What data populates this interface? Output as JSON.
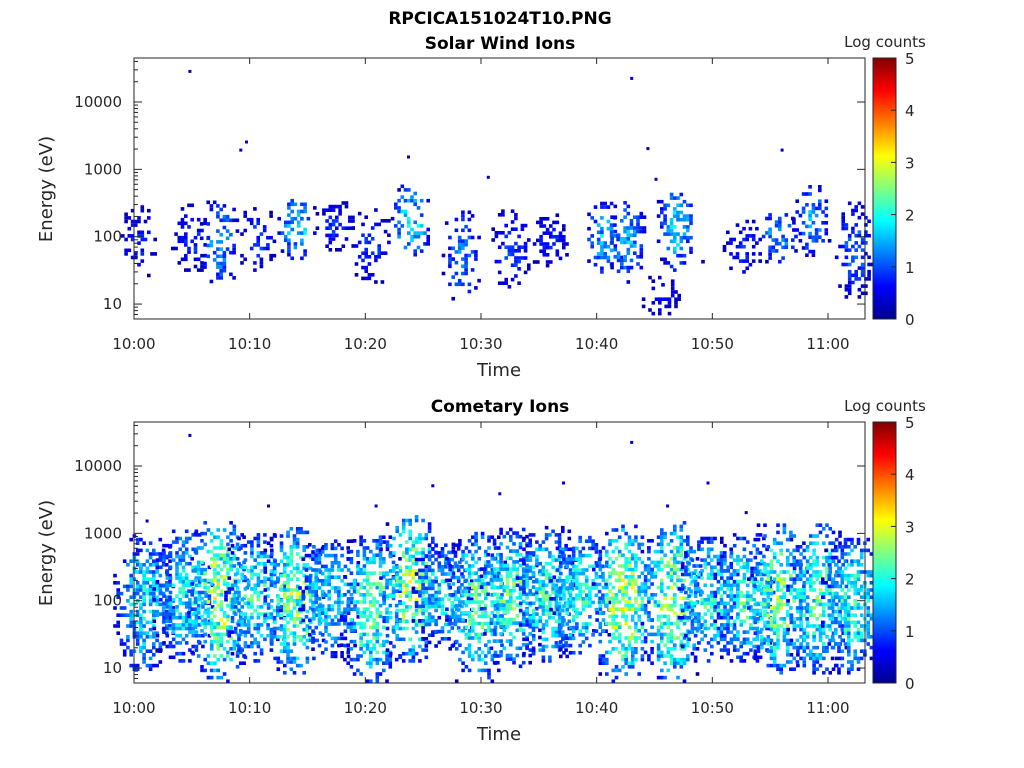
{
  "figure": {
    "title": "RPCICA151024T10.PNG"
  },
  "chart_data": [
    {
      "type": "heatmap",
      "title": "Solar Wind Ions",
      "xlabel": "Time",
      "ylabel": "Energy (eV)",
      "x_ticks": [
        "10:00",
        "10:10",
        "10:20",
        "10:30",
        "10:40",
        "10:50",
        "11:00"
      ],
      "y_ticks": [
        "10",
        "100",
        "1000",
        "10000"
      ],
      "y_scale": "log",
      "ylim": [
        6,
        45000
      ],
      "colorbar": {
        "label": "Log counts",
        "range": [
          0,
          5
        ],
        "ticks": [
          "0",
          "1",
          "2",
          "3",
          "4",
          "5"
        ],
        "colormap": "jet"
      },
      "bursts": [
        {
          "t": 0.2,
          "emin": 25,
          "emax": 280,
          "peak": 0.8
        },
        {
          "t": 4.8,
          "emin": 30,
          "emax": 300,
          "peak": 0.9
        },
        {
          "t": 7.3,
          "emin": 18,
          "emax": 340,
          "peak": 1.6
        },
        {
          "t": 10.5,
          "emin": 30,
          "emax": 250,
          "peak": 1.0
        },
        {
          "t": 14.0,
          "emin": 45,
          "emax": 360,
          "peak": 1.9
        },
        {
          "t": 17.3,
          "emin": 60,
          "emax": 330,
          "peak": 0.9
        },
        {
          "t": 20.4,
          "emin": 20,
          "emax": 240,
          "peak": 1.0
        },
        {
          "t": 23.8,
          "emin": 45,
          "emax": 560,
          "peak": 2.1
        },
        {
          "t": 28.2,
          "emin": 10,
          "emax": 240,
          "peak": 1.3
        },
        {
          "t": 32.5,
          "emin": 15,
          "emax": 240,
          "peak": 1.0
        },
        {
          "t": 35.8,
          "emin": 35,
          "emax": 200,
          "peak": 0.8
        },
        {
          "t": 40.5,
          "emin": 25,
          "emax": 320,
          "peak": 1.7
        },
        {
          "t": 42.5,
          "emin": 20,
          "emax": 320,
          "peak": 1.6
        },
        {
          "t": 45.5,
          "emin": 6,
          "emax": 25,
          "peak": 0.7
        },
        {
          "t": 46.8,
          "emin": 30,
          "emax": 550,
          "peak": 1.8
        },
        {
          "t": 49.8,
          "emin": 40,
          "emax": 45,
          "peak": 2.0
        },
        {
          "t": 52.5,
          "emin": 25,
          "emax": 200,
          "peak": 0.9
        },
        {
          "t": 55.6,
          "emin": 40,
          "emax": 250,
          "peak": 1.6
        },
        {
          "t": 58.5,
          "emin": 50,
          "emax": 550,
          "peak": 1.5
        },
        {
          "t": 62.2,
          "emin": 12,
          "emax": 300,
          "peak": 1.2
        }
      ],
      "outliers": [
        {
          "t": 4.7,
          "e": 28000
        },
        {
          "t": 42.9,
          "e": 22000
        },
        {
          "t": 9.6,
          "e": 2500
        },
        {
          "t": 9.1,
          "e": 1900
        },
        {
          "t": 23.6,
          "e": 1500
        },
        {
          "t": 44.3,
          "e": 2000
        },
        {
          "t": 55.9,
          "e": 1900
        },
        {
          "t": 30.5,
          "e": 750
        },
        {
          "t": 45.0,
          "e": 700
        }
      ]
    },
    {
      "type": "heatmap",
      "title": "Cometary Ions",
      "xlabel": "Time",
      "ylabel": "Energy (eV)",
      "x_ticks": [
        "10:00",
        "10:10",
        "10:20",
        "10:30",
        "10:40",
        "10:50",
        "11:00"
      ],
      "y_ticks": [
        "10",
        "100",
        "1000",
        "10000"
      ],
      "y_scale": "log",
      "ylim": [
        6,
        45000
      ],
      "colorbar": {
        "label": "Log counts",
        "range": [
          0,
          5
        ],
        "ticks": [
          "0",
          "1",
          "2",
          "3",
          "4",
          "5"
        ],
        "colormap": "jet"
      },
      "bursts": [
        {
          "t": 0.8,
          "emin": 8,
          "emax": 900,
          "peak": 2.0
        },
        {
          "t": 4.2,
          "emin": 12,
          "emax": 1100,
          "peak": 2.1
        },
        {
          "t": 7.2,
          "emin": 6,
          "emax": 1500,
          "peak": 3.0
        },
        {
          "t": 10.4,
          "emin": 12,
          "emax": 900,
          "peak": 2.3
        },
        {
          "t": 13.8,
          "emin": 8,
          "emax": 1200,
          "peak": 2.8
        },
        {
          "t": 16.8,
          "emin": 14,
          "emax": 800,
          "peak": 2.0
        },
        {
          "t": 20.4,
          "emin": 6,
          "emax": 900,
          "peak": 2.6
        },
        {
          "t": 23.8,
          "emin": 12,
          "emax": 1800,
          "peak": 2.9
        },
        {
          "t": 26.6,
          "emin": 20,
          "emax": 700,
          "peak": 2.0
        },
        {
          "t": 29.5,
          "emin": 6,
          "emax": 1000,
          "peak": 2.6
        },
        {
          "t": 32.5,
          "emin": 10,
          "emax": 1100,
          "peak": 2.5
        },
        {
          "t": 35.6,
          "emin": 12,
          "emax": 1200,
          "peak": 2.4
        },
        {
          "t": 38.5,
          "emin": 14,
          "emax": 900,
          "peak": 2.3
        },
        {
          "t": 42.2,
          "emin": 6,
          "emax": 1300,
          "peak": 3.0
        },
        {
          "t": 46.4,
          "emin": 6,
          "emax": 1500,
          "peak": 2.9
        },
        {
          "t": 49.6,
          "emin": 12,
          "emax": 800,
          "peak": 2.3
        },
        {
          "t": 52.7,
          "emin": 12,
          "emax": 900,
          "peak": 2.4
        },
        {
          "t": 55.6,
          "emin": 8,
          "emax": 1300,
          "peak": 2.8
        },
        {
          "t": 59.0,
          "emin": 8,
          "emax": 1400,
          "peak": 2.5
        },
        {
          "t": 62.0,
          "emin": 8,
          "emax": 900,
          "peak": 2.3
        }
      ],
      "outliers": [
        {
          "t": 4.7,
          "e": 28000
        },
        {
          "t": 42.9,
          "e": 22000
        },
        {
          "t": 25.7,
          "e": 5000
        },
        {
          "t": 37.0,
          "e": 5500
        },
        {
          "t": 49.5,
          "e": 5500
        },
        {
          "t": 11.5,
          "e": 2500
        },
        {
          "t": 20.8,
          "e": 2500
        },
        {
          "t": 46.0,
          "e": 2500
        },
        {
          "t": 52.8,
          "e": 2000
        },
        {
          "t": 31.5,
          "e": 3800
        },
        {
          "t": 1.0,
          "e": 1500
        }
      ]
    }
  ]
}
